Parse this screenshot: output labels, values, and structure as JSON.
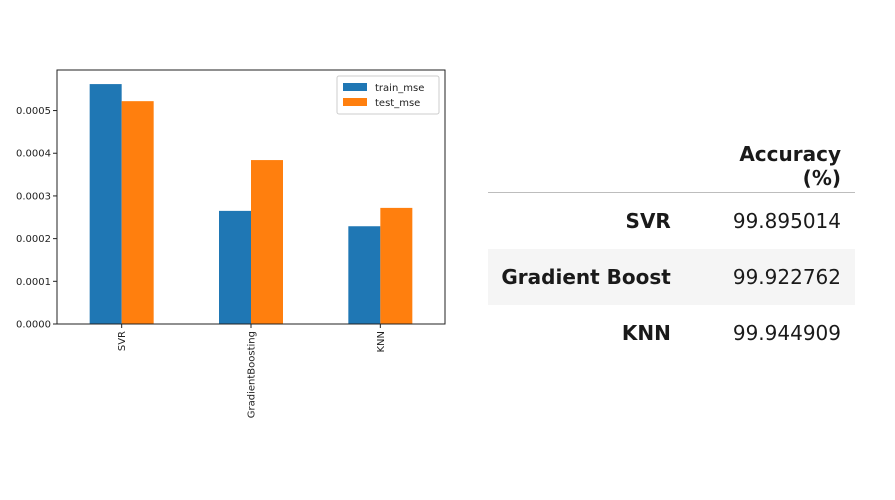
{
  "chart_data": {
    "type": "bar",
    "categories": [
      "SVR",
      "GradientBoosting",
      "KNN"
    ],
    "series": [
      {
        "name": "train_mse",
        "color": "#1f77b4",
        "values": [
          0.000562,
          0.000265,
          0.000229
        ]
      },
      {
        "name": "test_mse",
        "color": "#ff7f0e",
        "values": [
          0.000522,
          0.000384,
          0.000272
        ]
      }
    ],
    "yticks": [
      "0.0000",
      "0.0001",
      "0.0002",
      "0.0003",
      "0.0004",
      "0.0005"
    ],
    "ylim": [
      0,
      0.000595
    ],
    "legend_position": "top-right",
    "grid": false,
    "title": "",
    "xlabel": "",
    "ylabel": ""
  },
  "table": {
    "header": [
      "",
      "Accuracy (%)"
    ],
    "rows": [
      {
        "model": "SVR",
        "accuracy": "99.895014"
      },
      {
        "model": "Gradient Boost",
        "accuracy": "99.922762"
      },
      {
        "model": "KNN",
        "accuracy": "99.944909"
      }
    ]
  }
}
